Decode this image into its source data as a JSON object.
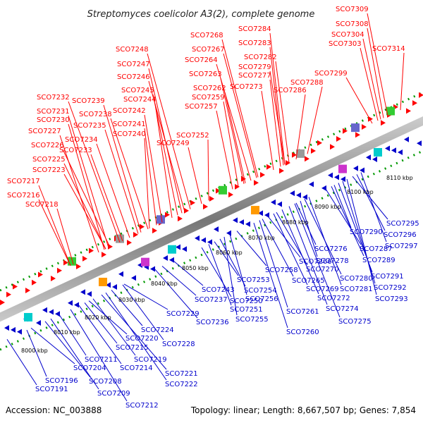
{
  "title": "Streptomyces coelicolor A3(2), complete genome",
  "footer": {
    "accession": "Accession: NC_003888",
    "topology": "Topology: linear; Length: 8,667,507 bp; Genes: 7,854"
  },
  "scale_labels": [
    "8000 kbp",
    "8010 kbp",
    "8020 kbp",
    "8030 kbp",
    "8040 kbp",
    "8050 kbp",
    "8060 kbp",
    "8070 kbp",
    "8080 kbp",
    "8090 kbp",
    "8100 kbp",
    "8110 kbp"
  ],
  "genes_top": [
    "SCO7216",
    "SCO7217",
    "SCO7218",
    "SCO7223",
    "SCO7225",
    "SCO7226",
    "SCO7227",
    "SCO7230",
    "SCO7231",
    "SCO7232",
    "SCO7233",
    "SCO7234",
    "SCO7235",
    "SCO7238",
    "SCO7239",
    "SCO7240",
    "SCO7241",
    "SCO7242",
    "SCO7244",
    "SCO7245",
    "SCO7246",
    "SCO7247",
    "SCO7248",
    "SCO7249",
    "SCO7252",
    "SCO7257",
    "SCO7259",
    "SCO7262",
    "SCO7263",
    "SCO7264",
    "SCO7267",
    "SCO7268",
    "SCO7273",
    "SCO7277",
    "SCO7279",
    "SCO7282",
    "SCO7283",
    "SCO7284",
    "SCO7286",
    "SCO7288",
    "SCO7299",
    "SCO7303",
    "SCO7304",
    "SCO7308",
    "SCO7309",
    "SCO7314"
  ],
  "genes_bottom": [
    "SCO7191",
    "SCO7196",
    "SCO7204",
    "SCO7208",
    "SCO7209",
    "SCO7211",
    "SCO7212",
    "SCO7214",
    "SCO7215",
    "SCO7219",
    "SCO7220",
    "SCO7221",
    "SCO7222",
    "SCO7224",
    "SCO7228",
    "SCO7229",
    "SCO7236",
    "SCO7237",
    "SCO7243",
    "SCO7250",
    "SCO7251",
    "SCO7253",
    "SCO7254",
    "SCO7255",
    "SCO7256",
    "SCO7258",
    "SCO7260",
    "SCO7261",
    "SCO7265",
    "SCO7266",
    "SCO7269",
    "SCO7270",
    "SCO7272",
    "SCO7274",
    "SCO7275",
    "SCO7276",
    "SCO7278",
    "SCO7280",
    "SCO7281",
    "SCO7287",
    "SCO7289",
    "SCO7290",
    "SCO7291",
    "SCO7292",
    "SCO7293",
    "SCO7295",
    "SCO7296",
    "SCO7297"
  ],
  "colors": {
    "forward_gene": "#ff0000",
    "reverse_gene": "#0000cc",
    "axis_tick": "#009900",
    "rna": "#00cccc"
  }
}
